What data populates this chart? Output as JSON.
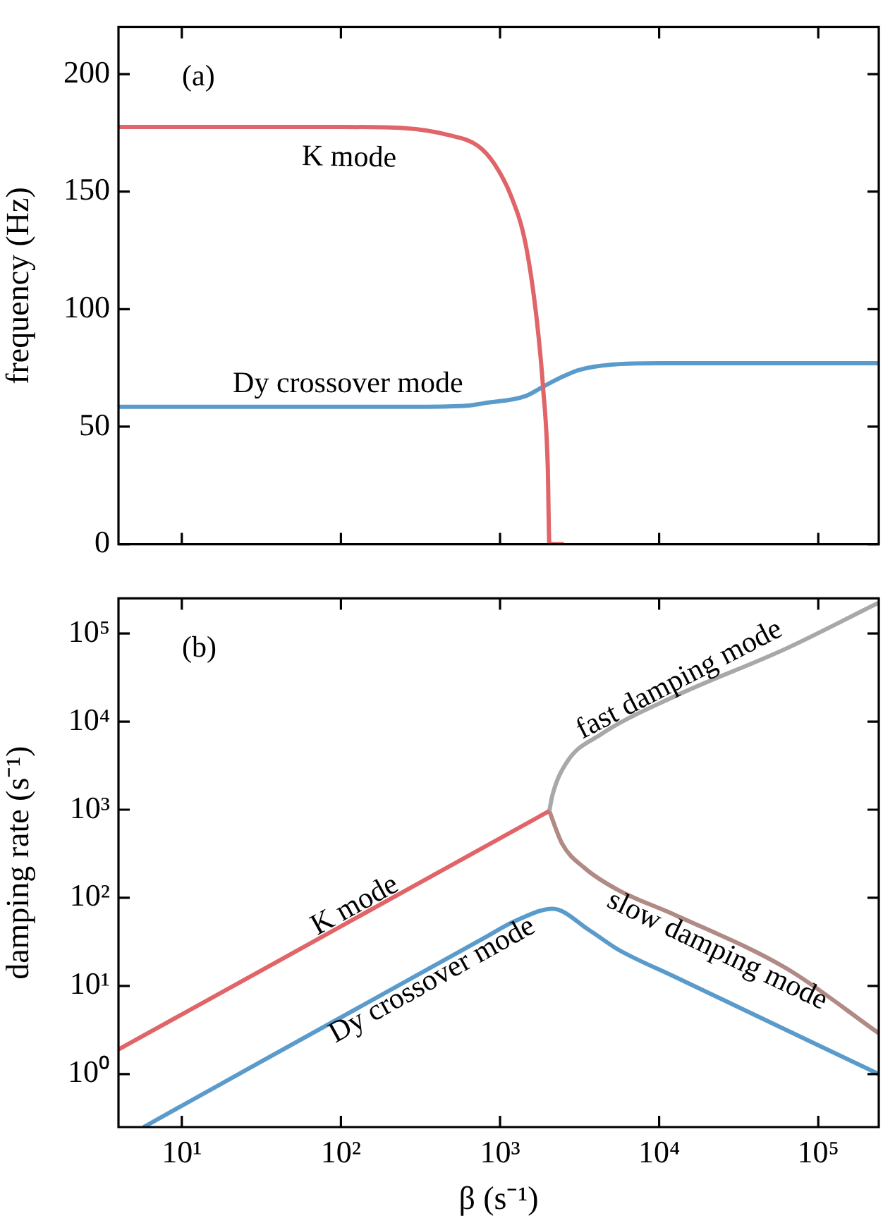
{
  "chart_data": [
    {
      "type": "line",
      "ylabel": "frequency (Hz)",
      "annotations": [
        "(a)"
      ],
      "log": "x",
      "xlim": [
        4,
        240000
      ],
      "ylim": [
        0,
        220
      ],
      "xticks": [
        {
          "value": 10,
          "label": null
        },
        {
          "value": 100,
          "label": null
        },
        {
          "value": 1000,
          "label": null
        },
        {
          "value": 10000,
          "label": null
        },
        {
          "value": 100000,
          "label": null
        }
      ],
      "yticks": [
        0,
        50,
        100,
        150,
        200
      ],
      "tick_labels": "y",
      "grid": false,
      "legend": false,
      "marker": "none",
      "line_style": "solid",
      "series": [
        {
          "name": "K mode",
          "color": "#e06468",
          "x": [
            4,
            100,
            251,
            479,
            724,
            923,
            1175,
            1445,
            1698,
            1862,
            1995,
            2042,
            2512
          ],
          "values": [
            177.5,
            177.5,
            177,
            174,
            169.5,
            161.7,
            148,
            128,
            96,
            67,
            33,
            0,
            0
          ]
        },
        {
          "name": "Dy crossover mode",
          "color": "#5b9bcb",
          "x": [
            4,
            316,
            631,
            794,
            1445,
            1862,
            2512,
            3162,
            5012,
            10000,
            240000
          ],
          "values": [
            58.5,
            58.5,
            59,
            60,
            63,
            67,
            71.5,
            74.2,
            76.4,
            77,
            77
          ]
        }
      ]
    },
    {
      "type": "line",
      "xlabel": "β (s⁻¹)",
      "ylabel": "damping rate (s⁻¹)",
      "annotations": [
        "(b)"
      ],
      "log": "xy",
      "xlim": [
        4,
        240000
      ],
      "ylim": [
        0.25,
        250000
      ],
      "xticks": [
        {
          "value": 10,
          "label": "10¹"
        },
        {
          "value": 100,
          "label": "10²"
        },
        {
          "value": 1000,
          "label": "10³"
        },
        {
          "value": 10000,
          "label": "10⁴"
        },
        {
          "value": 100000,
          "label": "10⁵"
        }
      ],
      "yticks": [
        {
          "value": 1,
          "label": "10⁰"
        },
        {
          "value": 10,
          "label": "10¹"
        },
        {
          "value": 100,
          "label": "10²"
        },
        {
          "value": 1000,
          "label": "10³"
        },
        {
          "value": 10000,
          "label": "10⁴"
        },
        {
          "value": 100000,
          "label": "10⁵"
        }
      ],
      "grid": false,
      "legend": false,
      "marker": "none",
      "line_style": "solid",
      "series": [
        {
          "name": "K mode",
          "color": "#e06468",
          "x": [
            4,
            2040
          ],
          "values": [
            1.9,
            966
          ]
        },
        {
          "name": "Dy crossover mode",
          "color": "#5b9bcb",
          "x": [
            5.75,
            794,
            1259,
            2138,
            3631,
            5495,
            12300,
            240000
          ],
          "values": [
            0.25,
            35,
            55,
            75,
            43,
            26,
            12.9,
            1
          ]
        },
        {
          "name": "fast damping mode",
          "color": "#a8a8a8",
          "x": [
            2040,
            2138,
            2630,
            4266,
            12300,
            63100,
            240000
          ],
          "values": [
            966,
            1479,
            3467,
            7079,
            19050,
            67600,
            224000
          ]
        },
        {
          "name": "slow damping mode",
          "color": "#b08a84",
          "x": [
            2040,
            2455,
            3388,
            5495,
            12300,
            63100,
            240000
          ],
          "values": [
            966,
            412,
            219,
            123,
            65,
            15.8,
            2.9
          ]
        }
      ]
    }
  ]
}
